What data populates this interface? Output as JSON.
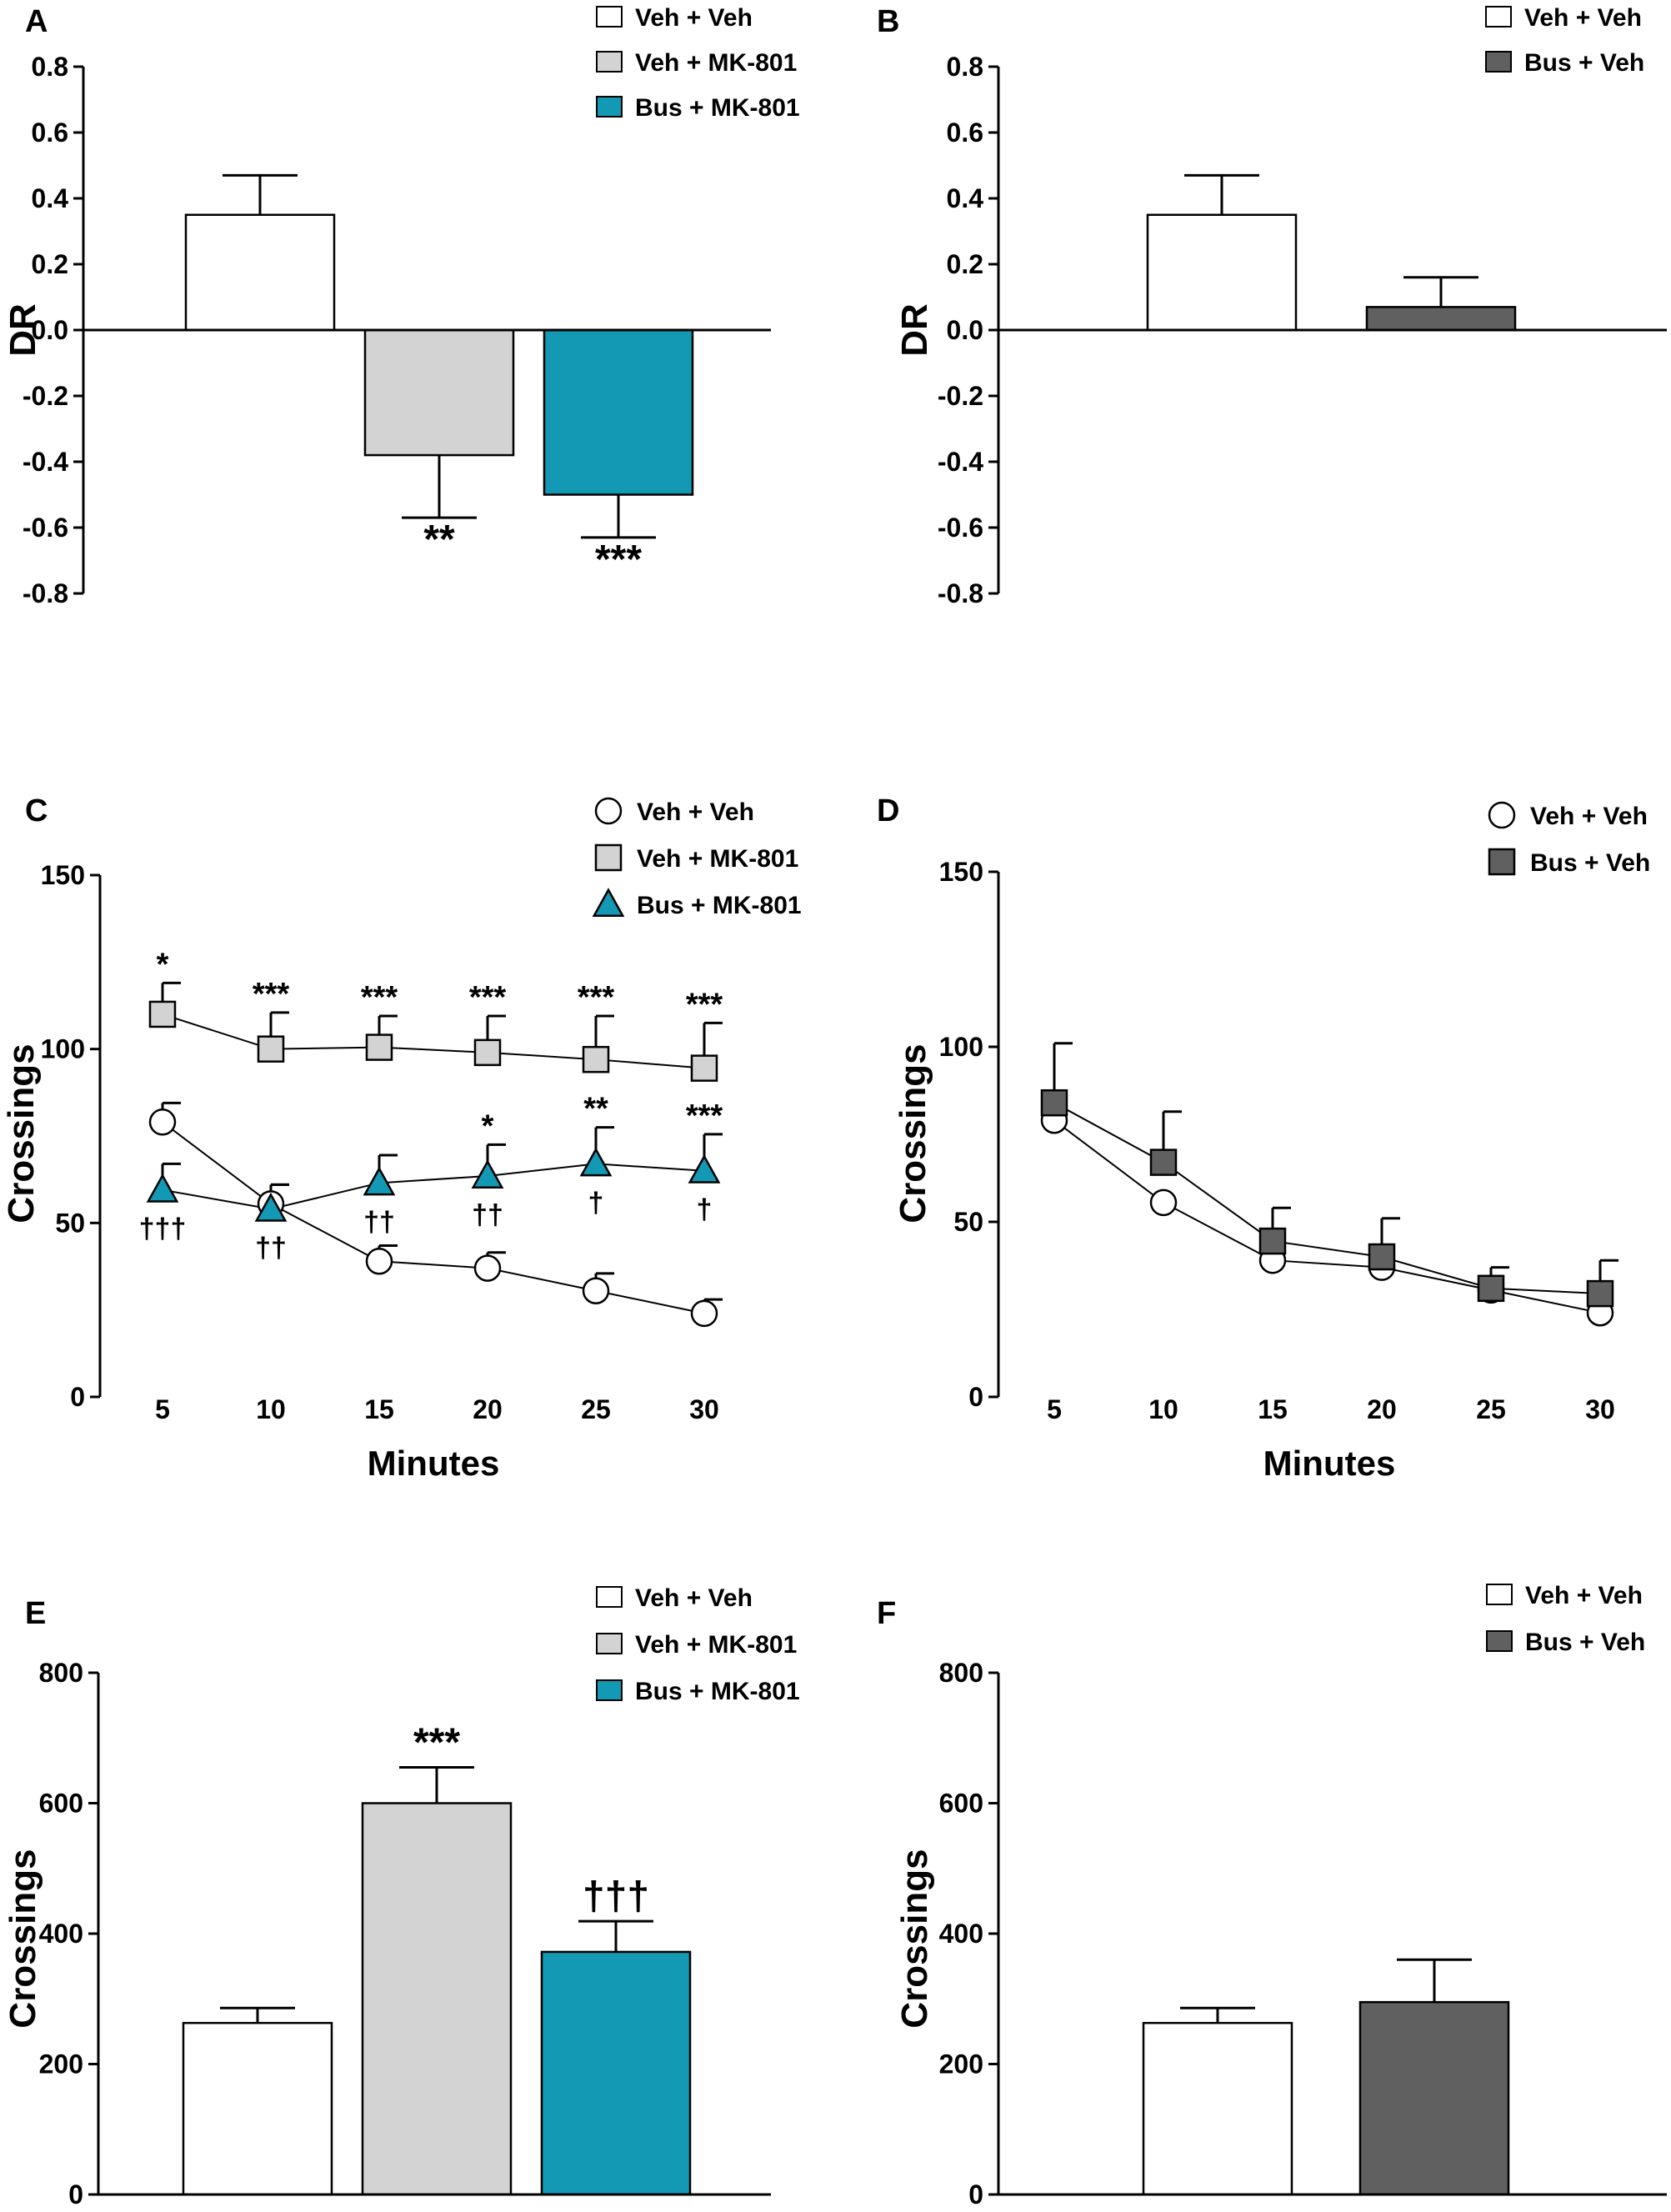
{
  "colors": {
    "white": "#ffffff",
    "light_gray": "#d3d3d3",
    "teal": "#1399b3",
    "dark_gray": "#606060",
    "black": "#000000"
  },
  "chart_data": [
    {
      "panel": "A",
      "type": "bar",
      "ylabel": "DR",
      "xlabel": "",
      "ylim": [
        -0.8,
        0.8
      ],
      "yticks": [
        0.8,
        0.6,
        0.4,
        0.2,
        0.0,
        -0.2,
        -0.4,
        -0.6,
        -0.8
      ],
      "yticklabels": [
        "0.8",
        "0.6",
        "0.4",
        "0.2",
        "0.0",
        "-0.2",
        "-0.4",
        "-0.6",
        "-0.8"
      ],
      "legend": [
        "Veh + Veh",
        "Veh + MK-801",
        "Bus + MK-801"
      ],
      "categories": [
        "Veh + Veh",
        "Veh + MK-801",
        "Bus + MK-801"
      ],
      "values": [
        0.35,
        -0.38,
        -0.5
      ],
      "errors": [
        0.12,
        0.19,
        0.13
      ],
      "annotations": [
        "",
        "**",
        "***"
      ],
      "bar_colors": [
        "#ffffff",
        "#d3d3d3",
        "#1399b3"
      ]
    },
    {
      "panel": "B",
      "type": "bar",
      "ylabel": "DR",
      "xlabel": "",
      "ylim": [
        -0.8,
        0.8
      ],
      "yticks": [
        0.8,
        0.6,
        0.4,
        0.2,
        0.0,
        -0.2,
        -0.4,
        -0.6,
        -0.8
      ],
      "yticklabels": [
        "0.8",
        "0.6",
        "0.4",
        "0.2",
        "0.0",
        "-0.2",
        "-0.4",
        "-0.6",
        "-0.8"
      ],
      "legend": [
        "Veh + Veh",
        "Bus + Veh"
      ],
      "categories": [
        "Veh + Veh",
        "Bus + Veh"
      ],
      "values": [
        0.35,
        0.07
      ],
      "errors": [
        0.12,
        0.09
      ],
      "annotations": [
        "",
        ""
      ],
      "bar_colors": [
        "#ffffff",
        "#606060"
      ]
    },
    {
      "panel": "C",
      "type": "line",
      "ylabel": "Crossings",
      "xlabel": "Minutes",
      "x": [
        5,
        10,
        15,
        20,
        25,
        30
      ],
      "xticklabels": [
        "5",
        "10",
        "15",
        "20",
        "25",
        "30"
      ],
      "ylim": [
        0,
        150
      ],
      "yticks": [
        150,
        100,
        50,
        0
      ],
      "yticklabels": [
        "150",
        "100",
        "50",
        "0"
      ],
      "legend": [
        "Veh + Veh",
        "Veh + MK-801",
        "Bus + MK-801"
      ],
      "series": [
        {
          "name": "Veh + Veh",
          "marker": "circle",
          "color": "#ffffff",
          "values": [
            79,
            55.5,
            39,
            37,
            30.5,
            24
          ],
          "errors": [
            5.5,
            5.5,
            4.5,
            4.5,
            5,
            4
          ],
          "above": [
            "",
            "",
            "",
            "",
            "",
            ""
          ],
          "below": [
            "",
            "",
            "",
            "",
            "",
            ""
          ]
        },
        {
          "name": "Veh + MK-801",
          "marker": "square",
          "color": "#d3d3d3",
          "values": [
            110,
            100,
            100.5,
            99,
            97,
            94.5
          ],
          "errors": [
            9,
            10.5,
            9,
            10.5,
            12.5,
            13
          ],
          "above": [
            "*",
            "***",
            "***",
            "***",
            "***",
            "***"
          ],
          "below": [
            "",
            "",
            "",
            "",
            "",
            ""
          ]
        },
        {
          "name": "Bus + MK-801",
          "marker": "triangle",
          "color": "#1399b3",
          "values": [
            59.5,
            54,
            61.5,
            63.5,
            67,
            65
          ],
          "errors": [
            7.5,
            7,
            8,
            9,
            10.5,
            10.5
          ],
          "above": [
            "",
            "",
            "",
            "*",
            "**",
            "***"
          ],
          "below": [
            "†††",
            "††",
            "††",
            "††",
            "†",
            "†"
          ]
        }
      ]
    },
    {
      "panel": "D",
      "type": "line",
      "ylabel": "Crossings",
      "xlabel": "Minutes",
      "x": [
        5,
        10,
        15,
        20,
        25,
        30
      ],
      "xticklabels": [
        "5",
        "10",
        "15",
        "20",
        "25",
        "30"
      ],
      "ylim": [
        0,
        150
      ],
      "yticks": [
        150,
        100,
        50,
        0
      ],
      "yticklabels": [
        "150",
        "100",
        "50",
        "0"
      ],
      "legend": [
        "Veh + Veh",
        "Bus + Veh"
      ],
      "series": [
        {
          "name": "Veh + Veh",
          "marker": "circle",
          "color": "#ffffff",
          "values": [
            79,
            55.5,
            39,
            37,
            30.5,
            24
          ],
          "errors": [
            0,
            0,
            0,
            0,
            0,
            0
          ],
          "above": [
            "",
            "",
            "",
            "",
            "",
            ""
          ],
          "below": [
            "",
            "",
            "",
            "",
            "",
            ""
          ]
        },
        {
          "name": "Bus + Veh",
          "marker": "square",
          "color": "#606060",
          "values": [
            84,
            67,
            44.5,
            40,
            31,
            29.5
          ],
          "errors": [
            17,
            14.5,
            9.5,
            11,
            6,
            9.5
          ],
          "above": [
            "",
            "",
            "",
            "",
            "",
            ""
          ],
          "below": [
            "",
            "",
            "",
            "",
            "",
            ""
          ]
        }
      ]
    },
    {
      "panel": "E",
      "type": "bar",
      "ylabel": "Crossings",
      "xlabel": "",
      "ylim": [
        0,
        800
      ],
      "yticks": [
        800,
        600,
        400,
        200,
        0
      ],
      "yticklabels": [
        "800",
        "600",
        "400",
        "200",
        "0"
      ],
      "legend": [
        "Veh + Veh",
        "Veh + MK-801",
        "Bus + MK-801"
      ],
      "categories": [
        "Veh + Veh",
        "Veh + MK-801",
        "Bus + MK-801"
      ],
      "values": [
        263,
        600,
        372
      ],
      "errors": [
        23,
        55,
        47
      ],
      "annotations": [
        "",
        "***",
        "†††"
      ],
      "bar_colors": [
        "#ffffff",
        "#d3d3d3",
        "#1399b3"
      ]
    },
    {
      "panel": "F",
      "type": "bar",
      "ylabel": "Crossings",
      "xlabel": "",
      "ylim": [
        0,
        800
      ],
      "yticks": [
        800,
        600,
        400,
        200,
        0
      ],
      "yticklabels": [
        "800",
        "600",
        "400",
        "200",
        "0"
      ],
      "legend": [
        "Veh + Veh",
        "Bus + Veh"
      ],
      "categories": [
        "Veh + Veh",
        "Bus + Veh"
      ],
      "values": [
        263,
        295
      ],
      "errors": [
        23,
        65
      ],
      "annotations": [
        "",
        ""
      ],
      "bar_colors": [
        "#ffffff",
        "#606060"
      ]
    }
  ]
}
